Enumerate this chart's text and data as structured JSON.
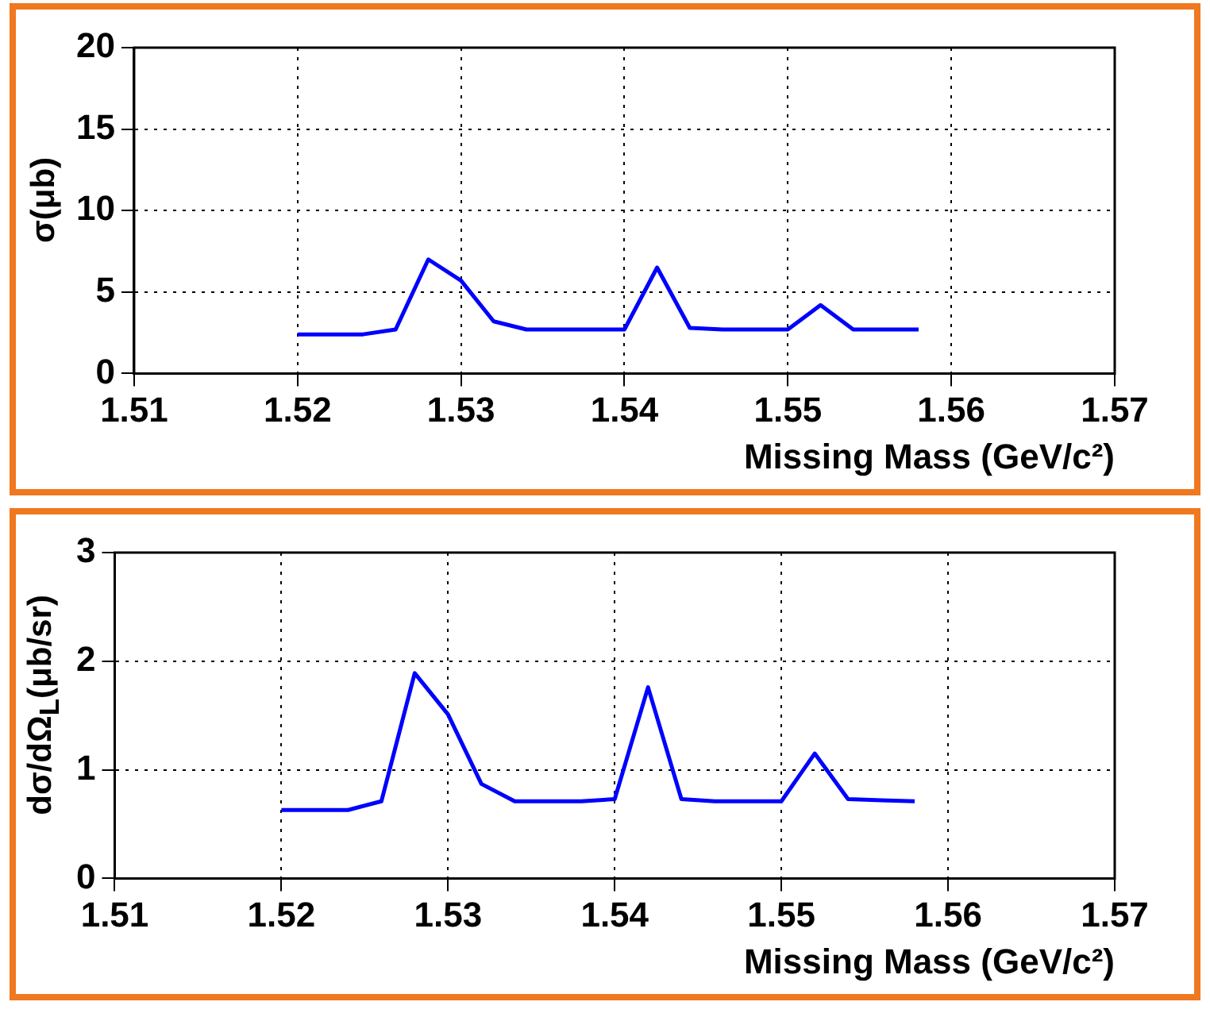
{
  "chart_data": [
    {
      "type": "line",
      "xlabel": "Missing Mass (GeV/c²)",
      "ylabel": "σ(μb)",
      "x": [
        1.52,
        1.522,
        1.524,
        1.526,
        1.528,
        1.53,
        1.532,
        1.534,
        1.536,
        1.538,
        1.54,
        1.542,
        1.544,
        1.546,
        1.548,
        1.55,
        1.552,
        1.554,
        1.556,
        1.558
      ],
      "series": [
        {
          "color": "#0000ff",
          "values": [
            2.4,
            2.4,
            2.4,
            2.7,
            7.0,
            5.7,
            3.2,
            2.7,
            2.7,
            2.7,
            2.7,
            6.5,
            2.8,
            2.7,
            2.7,
            2.7,
            4.2,
            2.7,
            2.7,
            2.7
          ]
        }
      ],
      "xlim": [
        1.51,
        1.57
      ],
      "xticks": [
        1.51,
        1.52,
        1.53,
        1.54,
        1.55,
        1.56,
        1.57
      ],
      "ylim": [
        0,
        20
      ],
      "yticks": [
        0,
        5,
        10,
        15,
        20
      ],
      "grid": true,
      "legend": false,
      "marker": "none",
      "line_style": "solid"
    },
    {
      "type": "line",
      "xlabel": "Missing Mass (GeV/c²)",
      "ylabel": "dσ/dΩ$_{L}$(μb/sr)",
      "x": [
        1.52,
        1.522,
        1.524,
        1.526,
        1.528,
        1.53,
        1.532,
        1.534,
        1.536,
        1.538,
        1.54,
        1.542,
        1.544,
        1.546,
        1.548,
        1.55,
        1.552,
        1.554,
        1.556,
        1.558
      ],
      "series": [
        {
          "color": "#0000ff",
          "values": [
            0.63,
            0.63,
            0.63,
            0.71,
            1.89,
            1.51,
            0.87,
            0.71,
            0.71,
            0.71,
            0.73,
            1.76,
            0.73,
            0.71,
            0.71,
            0.71,
            1.15,
            0.73,
            0.72,
            0.71
          ]
        }
      ],
      "xlim": [
        1.51,
        1.57
      ],
      "xticks": [
        1.51,
        1.52,
        1.53,
        1.54,
        1.55,
        1.56,
        1.57
      ],
      "ylim": [
        0,
        3
      ],
      "yticks": [
        0,
        1,
        2,
        3
      ],
      "grid": true,
      "legend": false,
      "marker": "none",
      "line_style": "solid"
    }
  ]
}
